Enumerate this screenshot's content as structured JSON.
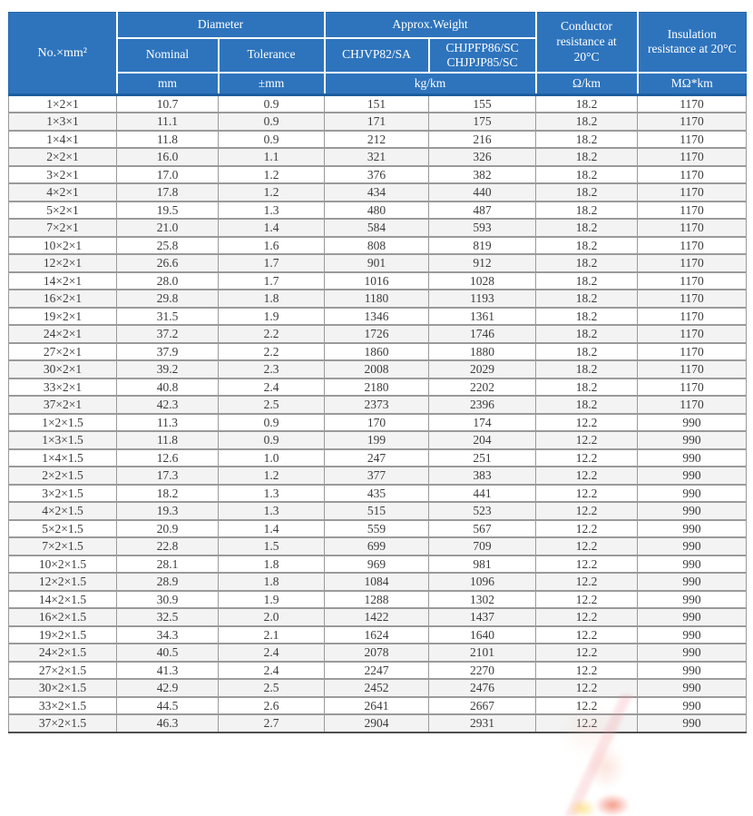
{
  "chart_data": {
    "type": "table",
    "header": {
      "size": "No.×mm²",
      "diameter": "Diameter",
      "approx_weight": "Approx.Weight",
      "nominal": "Nominal",
      "tolerance": "Tolerance",
      "model_a": "CHJVP82/SA",
      "model_b_line1": "CHJPFP86/SC",
      "model_b_line2": "CHJPJP85/SC",
      "conductor_resistance": "Conductor resistance at 20°C",
      "insulation_resistance": "Insulation resistance at 20°C"
    },
    "units": {
      "diameter_nominal": "mm",
      "diameter_tolerance": "±mm",
      "weight": "kg/km",
      "conductor_resistance": "Ω/km",
      "insulation_resistance": "MΩ*km"
    },
    "columns": [
      "No.×mm²",
      "Diameter Nominal (mm)",
      "Diameter Tolerance (±mm)",
      "Approx.Weight CHJVP82/SA (kg/km)",
      "Approx.Weight CHJPFP86/SC CHJPJP85/SC (kg/km)",
      "Conductor resistance at 20°C (Ω/km)",
      "Insulation resistance at 20°C (MΩ*km)"
    ],
    "rows": [
      [
        "1×2×1",
        "10.7",
        "0.9",
        "151",
        "155",
        "18.2",
        "1170"
      ],
      [
        "1×3×1",
        "11.1",
        "0.9",
        "171",
        "175",
        "18.2",
        "1170"
      ],
      [
        "1×4×1",
        "11.8",
        "0.9",
        "212",
        "216",
        "18.2",
        "1170"
      ],
      [
        "2×2×1",
        "16.0",
        "1.1",
        "321",
        "326",
        "18.2",
        "1170"
      ],
      [
        "3×2×1",
        "17.0",
        "1.2",
        "376",
        "382",
        "18.2",
        "1170"
      ],
      [
        "4×2×1",
        "17.8",
        "1.2",
        "434",
        "440",
        "18.2",
        "1170"
      ],
      [
        "5×2×1",
        "19.5",
        "1.3",
        "480",
        "487",
        "18.2",
        "1170"
      ],
      [
        "7×2×1",
        "21.0",
        "1.4",
        "584",
        "593",
        "18.2",
        "1170"
      ],
      [
        "10×2×1",
        "25.8",
        "1.6",
        "808",
        "819",
        "18.2",
        "1170"
      ],
      [
        "12×2×1",
        "26.6",
        "1.7",
        "901",
        "912",
        "18.2",
        "1170"
      ],
      [
        "14×2×1",
        "28.0",
        "1.7",
        "1016",
        "1028",
        "18.2",
        "1170"
      ],
      [
        "16×2×1",
        "29.8",
        "1.8",
        "1180",
        "1193",
        "18.2",
        "1170"
      ],
      [
        "19×2×1",
        "31.5",
        "1.9",
        "1346",
        "1361",
        "18.2",
        "1170"
      ],
      [
        "24×2×1",
        "37.2",
        "2.2",
        "1726",
        "1746",
        "18.2",
        "1170"
      ],
      [
        "27×2×1",
        "37.9",
        "2.2",
        "1860",
        "1880",
        "18.2",
        "1170"
      ],
      [
        "30×2×1",
        "39.2",
        "2.3",
        "2008",
        "2029",
        "18.2",
        "1170"
      ],
      [
        "33×2×1",
        "40.8",
        "2.4",
        "2180",
        "2202",
        "18.2",
        "1170"
      ],
      [
        "37×2×1",
        "42.3",
        "2.5",
        "2373",
        "2396",
        "18.2",
        "1170"
      ],
      [
        "1×2×1.5",
        "11.3",
        "0.9",
        "170",
        "174",
        "12.2",
        "990"
      ],
      [
        "1×3×1.5",
        "11.8",
        "0.9",
        "199",
        "204",
        "12.2",
        "990"
      ],
      [
        "1×4×1.5",
        "12.6",
        "1.0",
        "247",
        "251",
        "12.2",
        "990"
      ],
      [
        "2×2×1.5",
        "17.3",
        "1.2",
        "377",
        "383",
        "12.2",
        "990"
      ],
      [
        "3×2×1.5",
        "18.2",
        "1.3",
        "435",
        "441",
        "12.2",
        "990"
      ],
      [
        "4×2×1.5",
        "19.3",
        "1.3",
        "515",
        "523",
        "12.2",
        "990"
      ],
      [
        "5×2×1.5",
        "20.9",
        "1.4",
        "559",
        "567",
        "12.2",
        "990"
      ],
      [
        "7×2×1.5",
        "22.8",
        "1.5",
        "699",
        "709",
        "12.2",
        "990"
      ],
      [
        "10×2×1.5",
        "28.1",
        "1.8",
        "969",
        "981",
        "12.2",
        "990"
      ],
      [
        "12×2×1.5",
        "28.9",
        "1.8",
        "1084",
        "1096",
        "12.2",
        "990"
      ],
      [
        "14×2×1.5",
        "30.9",
        "1.9",
        "1288",
        "1302",
        "12.2",
        "990"
      ],
      [
        "16×2×1.5",
        "32.5",
        "2.0",
        "1422",
        "1437",
        "12.2",
        "990"
      ],
      [
        "19×2×1.5",
        "34.3",
        "2.1",
        "1624",
        "1640",
        "12.2",
        "990"
      ],
      [
        "24×2×1.5",
        "40.5",
        "2.4",
        "2078",
        "2101",
        "12.2",
        "990"
      ],
      [
        "27×2×1.5",
        "41.3",
        "2.4",
        "2247",
        "2270",
        "12.2",
        "990"
      ],
      [
        "30×2×1.5",
        "42.9",
        "2.5",
        "2452",
        "2476",
        "12.2",
        "990"
      ],
      [
        "33×2×1.5",
        "44.5",
        "2.6",
        "2641",
        "2667",
        "12.2",
        "990"
      ],
      [
        "37×2×1.5",
        "46.3",
        "2.7",
        "2904",
        "2931",
        "12.2",
        "990"
      ]
    ]
  },
  "colors": {
    "header_bg": "#2e74bd",
    "header_bg_dark": "#1c5e9e",
    "header_text": "#ffffff",
    "grid_line": "#9a9a9a",
    "grid_line_dark": "#4f4f4f",
    "row_alt_bg": "#f3f3f3",
    "body_text": "#3c3c3c"
  }
}
